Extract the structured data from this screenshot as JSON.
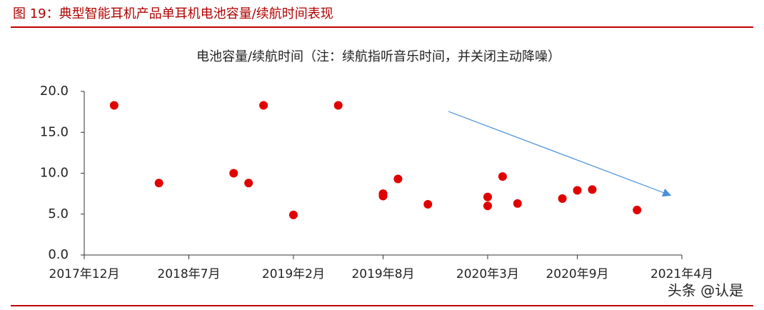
{
  "header": {
    "title": "图 19：典型智能耳机产品单耳机电池容量/续航时间表现"
  },
  "chart_data": {
    "type": "scatter",
    "title": "电池容量/续航时间（注：续航指听音乐时间，并关闭主动降噪）",
    "x": [
      "2018-02",
      "2018-05",
      "2018-10",
      "2018-11",
      "2018-12",
      "2019-02",
      "2019-05",
      "2019-08",
      "2019-08",
      "2019-09",
      "2019-11",
      "2020-03",
      "2020-03",
      "2020-04",
      "2020-05",
      "2020-08",
      "2020-09",
      "2020-10",
      "2021-01"
    ],
    "series": [
      {
        "color": "#e00000",
        "values": [
          18.3,
          8.8,
          10.0,
          8.8,
          18.3,
          4.9,
          18.3,
          7.5,
          7.2,
          9.3,
          6.2,
          7.1,
          6.0,
          9.6,
          6.3,
          6.9,
          7.9,
          8.0,
          5.5
        ]
      }
    ],
    "xlim": [
      "2017-12",
      "2021-04"
    ],
    "xticks": [
      {
        "value": "2017-12",
        "label": "2017年12月"
      },
      {
        "value": "2018-07",
        "label": "2018年7月"
      },
      {
        "value": "2019-02",
        "label": "2019年2月"
      },
      {
        "value": "2019-08",
        "label": "2019年8月"
      },
      {
        "value": "2020-03",
        "label": "2020年3月"
      },
      {
        "value": "2020-09",
        "label": "2020年9月"
      },
      {
        "value": "2021-04",
        "label": "2021年4月"
      }
    ],
    "ylim": [
      0,
      20
    ],
    "yticks": [
      {
        "value": 0,
        "label": "0.0"
      },
      {
        "value": 5,
        "label": "5.0"
      },
      {
        "value": 10,
        "label": "10.0"
      },
      {
        "value": 15,
        "label": "15.0"
      },
      {
        "value": 20,
        "label": "20.0"
      }
    ]
  },
  "watermark": "头条 @认是"
}
